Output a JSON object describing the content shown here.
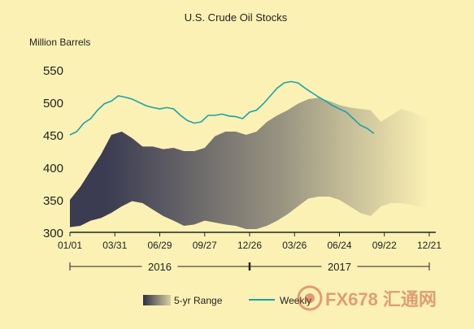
{
  "chart_data": {
    "type": "area",
    "title": "U.S. Crude Oil Stocks",
    "ylabel": "Million Barrels",
    "xlabel": "",
    "ylim": [
      300,
      560
    ],
    "yticks": [
      300,
      350,
      400,
      450,
      500,
      550
    ],
    "xlim": [
      0,
      104
    ],
    "xticks": [
      {
        "x": 0,
        "label": "01/01"
      },
      {
        "x": 13,
        "label": "03/31"
      },
      {
        "x": 26,
        "label": "06/29"
      },
      {
        "x": 39,
        "label": "09/27"
      },
      {
        "x": 52,
        "label": "12/26"
      },
      {
        "x": 65,
        "label": "03/26"
      },
      {
        "x": 78,
        "label": "06/24"
      },
      {
        "x": 91,
        "label": "09/22"
      },
      {
        "x": 104,
        "label": "12/21"
      }
    ],
    "year_groups": [
      {
        "label": "2016",
        "x0": 0,
        "x1": 52
      },
      {
        "label": "2017",
        "x0": 52,
        "x1": 104
      }
    ],
    "grid": false,
    "legend_position": "bottom",
    "series": [
      {
        "name": "5-yr Range",
        "kind": "band",
        "color_dark": "#3b3b52",
        "color_light": "#fbf1b4",
        "x": [
          0,
          3,
          6,
          9,
          12,
          15,
          18,
          21,
          24,
          27,
          30,
          33,
          36,
          39,
          42,
          45,
          48,
          51,
          54,
          57,
          60,
          63,
          66,
          69,
          72,
          75,
          78,
          81,
          84,
          87,
          90,
          93,
          96,
          99,
          102,
          104
        ],
        "upper": [
          350,
          370,
          395,
          420,
          450,
          455,
          445,
          432,
          432,
          428,
          430,
          425,
          425,
          430,
          448,
          455,
          455,
          450,
          455,
          470,
          480,
          488,
          498,
          505,
          507,
          502,
          496,
          492,
          490,
          488,
          470,
          480,
          490,
          485,
          478,
          480
        ],
        "lower": [
          308,
          310,
          318,
          322,
          330,
          340,
          348,
          345,
          335,
          325,
          318,
          310,
          312,
          318,
          315,
          312,
          310,
          305,
          305,
          310,
          318,
          328,
          340,
          352,
          355,
          355,
          350,
          340,
          330,
          325,
          340,
          345,
          345,
          342,
          338,
          340
        ]
      },
      {
        "name": "Weekly",
        "kind": "line",
        "color": "#1aa3a8",
        "x": [
          0,
          2,
          4,
          6,
          8,
          10,
          12,
          14,
          16,
          18,
          20,
          22,
          24,
          26,
          28,
          30,
          32,
          34,
          36,
          38,
          40,
          42,
          44,
          46,
          48,
          50,
          52,
          54,
          56,
          58,
          60,
          62,
          64,
          66,
          68,
          70,
          72,
          74,
          76,
          78,
          80,
          82,
          84,
          86,
          88
        ],
        "y": [
          450,
          455,
          468,
          475,
          488,
          498,
          502,
          510,
          508,
          505,
          500,
          495,
          492,
          490,
          492,
          490,
          480,
          472,
          468,
          470,
          480,
          480,
          482,
          479,
          478,
          475,
          485,
          488,
          498,
          510,
          522,
          530,
          532,
          530,
          522,
          515,
          508,
          502,
          495,
          490,
          485,
          475,
          465,
          460,
          452
        ]
      }
    ]
  },
  "watermark": "FX678 汇通网"
}
